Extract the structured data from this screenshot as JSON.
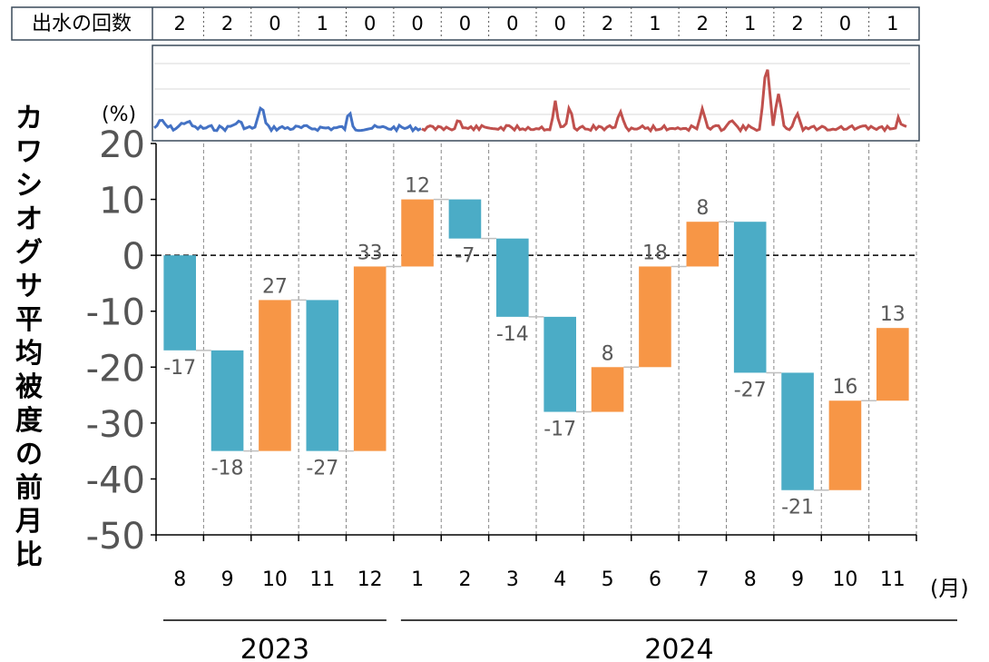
{
  "flood_row": {
    "label": "出水の回数",
    "counts": [
      "2",
      "2",
      "0",
      "1",
      "0",
      "0",
      "0",
      "0",
      "0",
      "2",
      "1",
      "2",
      "1",
      "2",
      "0",
      "1"
    ]
  },
  "inset": {
    "unit_label": "(%)"
  },
  "chart_data": {
    "type": "waterfall",
    "ylabel": "カワシオグサ平均被度の前月比",
    "xlabel": "(月)",
    "ylim": [
      -50,
      20
    ],
    "yticks": [
      "20",
      "10",
      "0",
      "-10",
      "-20",
      "-30",
      "-40",
      "-50"
    ],
    "categories": [
      "8",
      "9",
      "10",
      "11",
      "12",
      "1",
      "2",
      "3",
      "4",
      "5",
      "6",
      "7",
      "8",
      "9",
      "10",
      "11"
    ],
    "year_groups": [
      {
        "label": "2023",
        "months": [
          "8",
          "9",
          "10",
          "11",
          "12"
        ]
      },
      {
        "label": "2024",
        "months": [
          "1",
          "2",
          "3",
          "4",
          "5",
          "6",
          "7",
          "8",
          "9",
          "10",
          "11"
        ]
      }
    ],
    "values": [
      -17,
      -18,
      27,
      -27,
      33,
      12,
      -7,
      -14,
      -17,
      8,
      18,
      8,
      -27,
      -21,
      16,
      13
    ],
    "labels": [
      "-17",
      "-18",
      "27",
      "-27",
      "33",
      "12",
      "-7",
      "-14",
      "-17",
      "8",
      "18",
      "8",
      "-27",
      "-21",
      "16",
      "13"
    ],
    "increase_color": "#F79646",
    "decrease_color": "#4BACC6",
    "inset_series_colors": [
      "#4472C4",
      "#C0504D"
    ]
  }
}
